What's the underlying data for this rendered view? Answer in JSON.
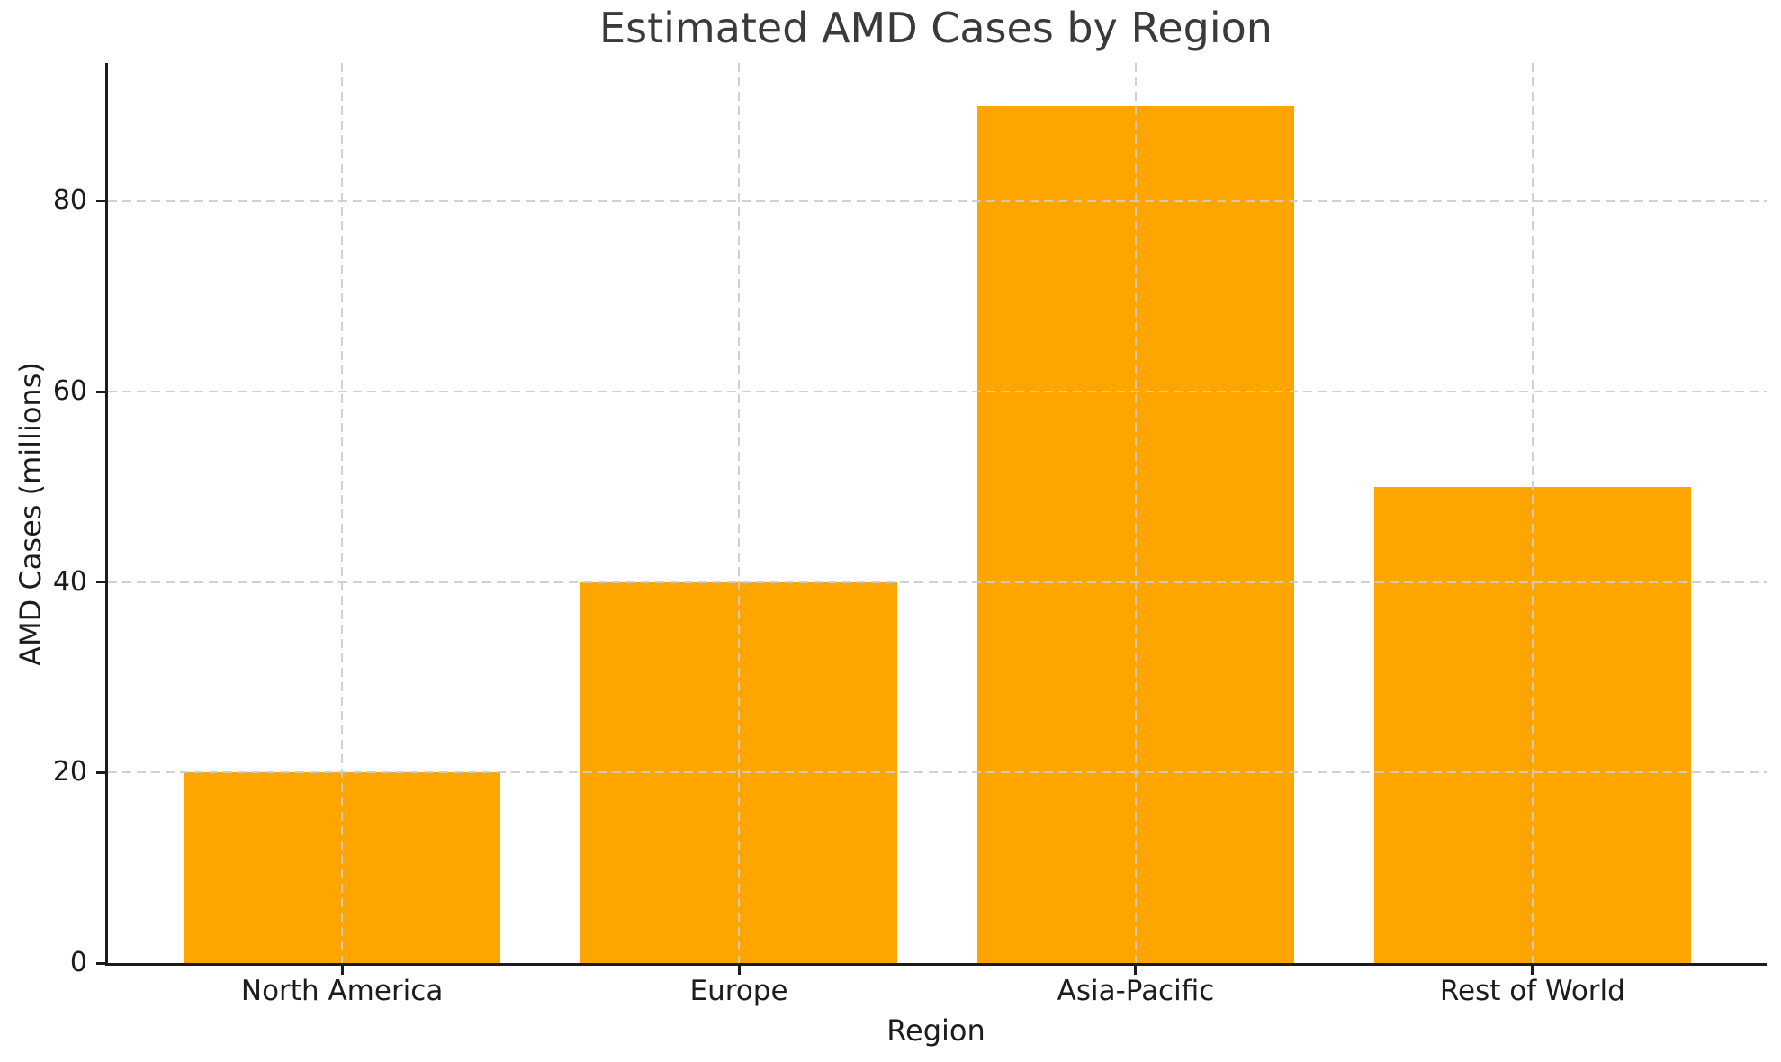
{
  "figure": {
    "background": "#ffffff"
  },
  "chart_data": {
    "type": "bar",
    "title": "Estimated AMD Cases by Region",
    "xlabel": "Region",
    "ylabel": "AMD Cases (millions)",
    "categories": [
      "North America",
      "Europe",
      "Asia-Pacific",
      "Rest of World"
    ],
    "values": [
      20,
      40,
      90,
      50
    ],
    "yticks": [
      0,
      20,
      40,
      60,
      80
    ],
    "ytick_labels": [
      "0",
      "20",
      "40",
      "60",
      "80"
    ],
    "ylim": [
      0,
      94.5
    ],
    "xlim": [
      -0.59,
      3.59
    ],
    "bar_rel_width": 0.8,
    "bar_color": "#FFA500",
    "grid": {
      "show": true,
      "axis": "both",
      "line_style": "dashed",
      "color": "#cccccc",
      "drawn_above_bars": true
    },
    "legend_position": "none",
    "colors": {
      "title": "#3a3a3a",
      "text": "#1c1c1c",
      "spine": "#1c1c1c"
    }
  }
}
